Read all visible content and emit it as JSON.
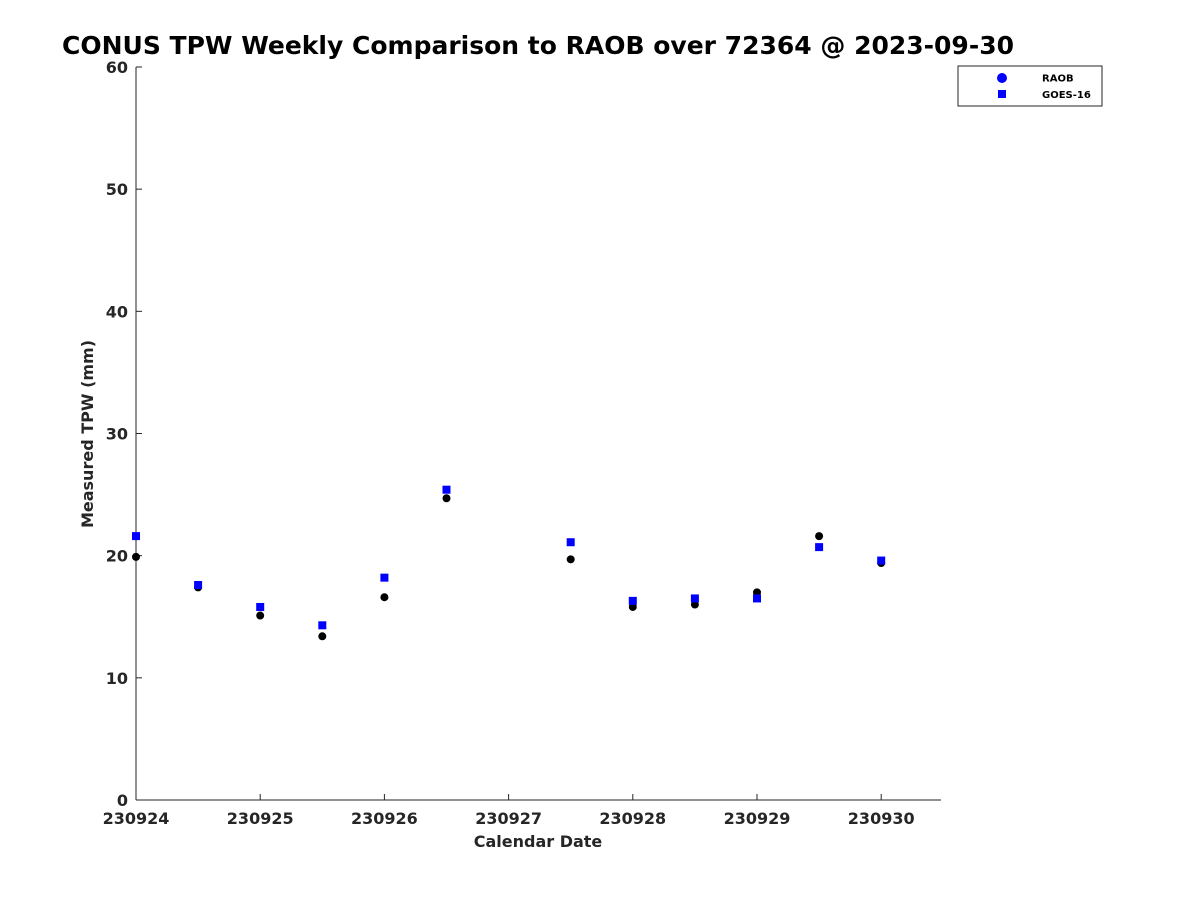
{
  "chart_data": {
    "type": "scatter",
    "title": "CONUS TPW Weekly Comparison to RAOB over 72364 @ 2023-09-30",
    "xlabel": "Calendar Date",
    "ylabel": "Measured TPW (mm)",
    "xlim": [
      "230924",
      "230930 12Z"
    ],
    "ylim": [
      0,
      60
    ],
    "x_ticks": [
      "230924",
      "230925",
      "230926",
      "230927",
      "230928",
      "230929",
      "230930"
    ],
    "y_ticks": [
      "0",
      "10",
      "20",
      "30",
      "40",
      "50",
      "60"
    ],
    "grid": false,
    "legend_position": "top-right",
    "series": [
      {
        "name": "RAOB",
        "marker": "circle",
        "color": "#000000",
        "legend_color": "#0000ff",
        "points": [
          {
            "x": "230924 00Z",
            "y": 19.9
          },
          {
            "x": "230924 12Z",
            "y": 17.4
          },
          {
            "x": "230925 00Z",
            "y": 15.1
          },
          {
            "x": "230925 12Z",
            "y": 13.4
          },
          {
            "x": "230926 00Z",
            "y": 16.6
          },
          {
            "x": "230926 12Z",
            "y": 24.7
          },
          {
            "x": "230927 12Z",
            "y": 19.7
          },
          {
            "x": "230928 00Z",
            "y": 15.8
          },
          {
            "x": "230928 12Z",
            "y": 16.0
          },
          {
            "x": "230929 00Z",
            "y": 17.0
          },
          {
            "x": "230929 12Z",
            "y": 21.6
          },
          {
            "x": "230930 00Z",
            "y": 19.4
          }
        ]
      },
      {
        "name": "GOES-16",
        "marker": "square",
        "color": "#0000ff",
        "points": [
          {
            "x": "230924 00Z",
            "y": 21.6
          },
          {
            "x": "230924 12Z",
            "y": 17.6
          },
          {
            "x": "230925 00Z",
            "y": 15.8
          },
          {
            "x": "230925 12Z",
            "y": 14.3
          },
          {
            "x": "230926 00Z",
            "y": 18.2
          },
          {
            "x": "230926 12Z",
            "y": 25.4
          },
          {
            "x": "230927 12Z",
            "y": 21.1
          },
          {
            "x": "230928 00Z",
            "y": 16.3
          },
          {
            "x": "230928 12Z",
            "y": 16.5
          },
          {
            "x": "230929 00Z",
            "y": 16.5
          },
          {
            "x": "230929 12Z",
            "y": 20.7
          },
          {
            "x": "230930 00Z",
            "y": 19.6
          }
        ]
      }
    ]
  }
}
